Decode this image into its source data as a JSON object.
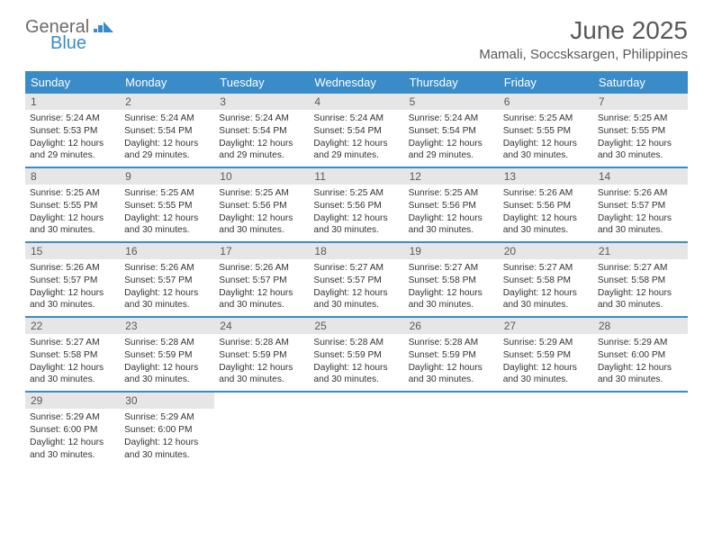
{
  "brand": {
    "line1": "General",
    "line2": "Blue"
  },
  "title": "June 2025",
  "location": "Mamali, Soccsksargen, Philippines",
  "colors": {
    "header_bg": "#3a8cc9",
    "header_text": "#ffffff",
    "daynum_bg": "#e6e6e6",
    "daynum_text": "#5a5a5a",
    "border": "#3a8cc9",
    "title_color": "#585858",
    "body_text": "#333333",
    "logo_gray": "#6b6b6b",
    "logo_blue": "#3a8cc9"
  },
  "day_names": [
    "Sunday",
    "Monday",
    "Tuesday",
    "Wednesday",
    "Thursday",
    "Friday",
    "Saturday"
  ],
  "weeks": [
    [
      {
        "n": "1",
        "sr": "5:24 AM",
        "ss": "5:53 PM",
        "dl": "12 hours and 29 minutes."
      },
      {
        "n": "2",
        "sr": "5:24 AM",
        "ss": "5:54 PM",
        "dl": "12 hours and 29 minutes."
      },
      {
        "n": "3",
        "sr": "5:24 AM",
        "ss": "5:54 PM",
        "dl": "12 hours and 29 minutes."
      },
      {
        "n": "4",
        "sr": "5:24 AM",
        "ss": "5:54 PM",
        "dl": "12 hours and 29 minutes."
      },
      {
        "n": "5",
        "sr": "5:24 AM",
        "ss": "5:54 PM",
        "dl": "12 hours and 29 minutes."
      },
      {
        "n": "6",
        "sr": "5:25 AM",
        "ss": "5:55 PM",
        "dl": "12 hours and 30 minutes."
      },
      {
        "n": "7",
        "sr": "5:25 AM",
        "ss": "5:55 PM",
        "dl": "12 hours and 30 minutes."
      }
    ],
    [
      {
        "n": "8",
        "sr": "5:25 AM",
        "ss": "5:55 PM",
        "dl": "12 hours and 30 minutes."
      },
      {
        "n": "9",
        "sr": "5:25 AM",
        "ss": "5:55 PM",
        "dl": "12 hours and 30 minutes."
      },
      {
        "n": "10",
        "sr": "5:25 AM",
        "ss": "5:56 PM",
        "dl": "12 hours and 30 minutes."
      },
      {
        "n": "11",
        "sr": "5:25 AM",
        "ss": "5:56 PM",
        "dl": "12 hours and 30 minutes."
      },
      {
        "n": "12",
        "sr": "5:25 AM",
        "ss": "5:56 PM",
        "dl": "12 hours and 30 minutes."
      },
      {
        "n": "13",
        "sr": "5:26 AM",
        "ss": "5:56 PM",
        "dl": "12 hours and 30 minutes."
      },
      {
        "n": "14",
        "sr": "5:26 AM",
        "ss": "5:57 PM",
        "dl": "12 hours and 30 minutes."
      }
    ],
    [
      {
        "n": "15",
        "sr": "5:26 AM",
        "ss": "5:57 PM",
        "dl": "12 hours and 30 minutes."
      },
      {
        "n": "16",
        "sr": "5:26 AM",
        "ss": "5:57 PM",
        "dl": "12 hours and 30 minutes."
      },
      {
        "n": "17",
        "sr": "5:26 AM",
        "ss": "5:57 PM",
        "dl": "12 hours and 30 minutes."
      },
      {
        "n": "18",
        "sr": "5:27 AM",
        "ss": "5:57 PM",
        "dl": "12 hours and 30 minutes."
      },
      {
        "n": "19",
        "sr": "5:27 AM",
        "ss": "5:58 PM",
        "dl": "12 hours and 30 minutes."
      },
      {
        "n": "20",
        "sr": "5:27 AM",
        "ss": "5:58 PM",
        "dl": "12 hours and 30 minutes."
      },
      {
        "n": "21",
        "sr": "5:27 AM",
        "ss": "5:58 PM",
        "dl": "12 hours and 30 minutes."
      }
    ],
    [
      {
        "n": "22",
        "sr": "5:27 AM",
        "ss": "5:58 PM",
        "dl": "12 hours and 30 minutes."
      },
      {
        "n": "23",
        "sr": "5:28 AM",
        "ss": "5:59 PM",
        "dl": "12 hours and 30 minutes."
      },
      {
        "n": "24",
        "sr": "5:28 AM",
        "ss": "5:59 PM",
        "dl": "12 hours and 30 minutes."
      },
      {
        "n": "25",
        "sr": "5:28 AM",
        "ss": "5:59 PM",
        "dl": "12 hours and 30 minutes."
      },
      {
        "n": "26",
        "sr": "5:28 AM",
        "ss": "5:59 PM",
        "dl": "12 hours and 30 minutes."
      },
      {
        "n": "27",
        "sr": "5:29 AM",
        "ss": "5:59 PM",
        "dl": "12 hours and 30 minutes."
      },
      {
        "n": "28",
        "sr": "5:29 AM",
        "ss": "6:00 PM",
        "dl": "12 hours and 30 minutes."
      }
    ],
    [
      {
        "n": "29",
        "sr": "5:29 AM",
        "ss": "6:00 PM",
        "dl": "12 hours and 30 minutes."
      },
      {
        "n": "30",
        "sr": "5:29 AM",
        "ss": "6:00 PM",
        "dl": "12 hours and 30 minutes."
      },
      null,
      null,
      null,
      null,
      null
    ]
  ],
  "labels": {
    "sunrise": "Sunrise:",
    "sunset": "Sunset:",
    "daylight": "Daylight:"
  }
}
